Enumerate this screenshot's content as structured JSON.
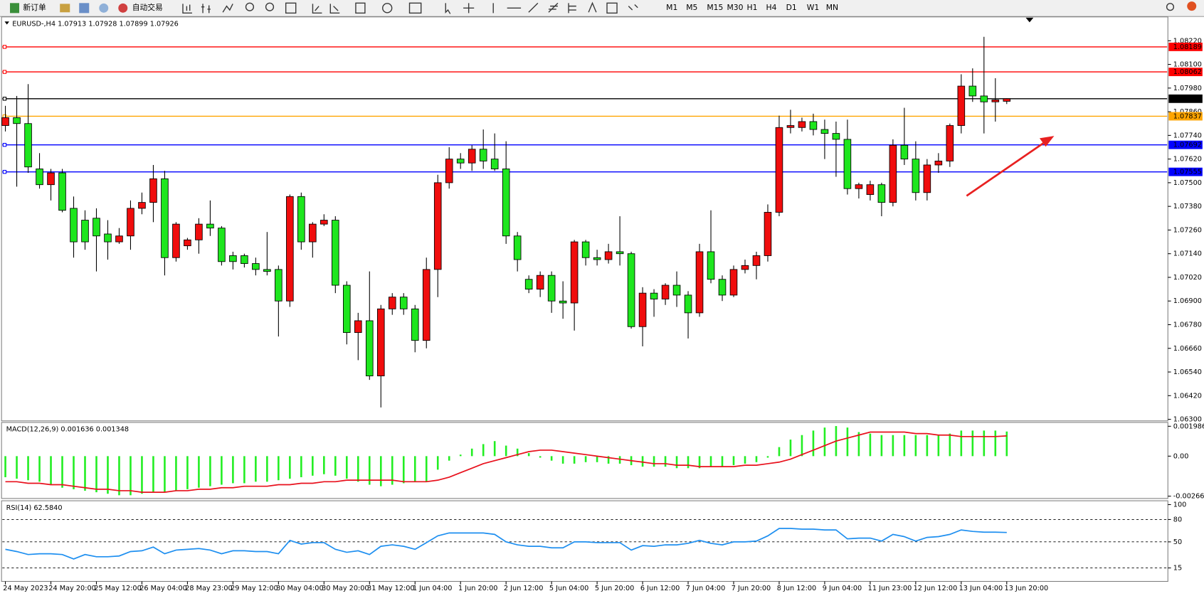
{
  "toolbar": {
    "new_order": "新订单",
    "auto_trading": "自动交易",
    "timeframes": [
      "M1",
      "M5",
      "M15",
      "M30",
      "H1",
      "H4",
      "D1",
      "W1",
      "MN"
    ]
  },
  "chart_data": [
    {
      "type": "candlestick",
      "title": "EURUSD-,H4  1.07913 1.07928 1.07899 1.07926",
      "up_color": "#f00d0d",
      "down_color": "#1ee61e",
      "categories": [
        "24 May 2023",
        null,
        null,
        null,
        "24 May 20:00",
        null,
        null,
        null,
        "25 May 12:00",
        null,
        null,
        null,
        "26 May 04:00",
        null,
        null,
        null,
        "28 May 23:00",
        null,
        null,
        null,
        "29 May 12:00",
        null,
        null,
        null,
        "30 May 04:00",
        null,
        null,
        null,
        "30 May 20:00",
        null,
        null,
        null,
        "31 May 12:00",
        null,
        null,
        null,
        "1 Jun 04:00",
        null,
        null,
        null,
        "1 Jun 20:00",
        null,
        null,
        null,
        "2 Jun 12:00",
        null,
        null,
        null,
        "5 Jun 04:00",
        null,
        null,
        null,
        "5 Jun 20:00",
        null,
        null,
        null,
        "6 Jun 12:00",
        null,
        null,
        null,
        "7 Jun 04:00",
        null,
        null,
        null,
        "7 Jun 20:00",
        null,
        null,
        null,
        "8 Jun 12:00",
        null,
        null,
        null,
        "9 Jun 04:00",
        null,
        null,
        null,
        "11 Jun 23:00",
        null,
        null,
        null,
        "12 Jun 12:00",
        null,
        null,
        null,
        "13 Jun 04:00",
        null,
        null,
        null,
        "13 Jun 20:00"
      ],
      "open": [
        1.0779,
        1.0783,
        1.078,
        1.0757,
        1.0749,
        1.0755,
        1.0737,
        1.0731,
        1.0732,
        1.0724,
        1.072,
        1.0723,
        1.0737,
        1.074,
        1.0752,
        1.0712,
        1.0718,
        1.0721,
        1.0729,
        1.0727,
        1.0713,
        1.0713,
        1.0709,
        1.0706,
        1.0706,
        1.069,
        1.0743,
        1.072,
        1.0729,
        1.0731,
        1.0698,
        1.0674,
        1.068,
        1.0652,
        1.0686,
        1.0692,
        1.0686,
        1.067,
        1.0706,
        1.075,
        1.0762,
        1.076,
        1.0767,
        1.0762,
        1.0757,
        1.0723,
        1.0701,
        1.0696,
        1.0703,
        1.069,
        1.0689,
        1.072,
        1.0712,
        1.0711,
        1.0715,
        1.0714,
        1.0677,
        1.0694,
        1.0691,
        1.0698,
        1.0693,
        1.0684,
        1.0715,
        1.0701,
        1.0693,
        1.0706,
        1.0708,
        1.0713,
        1.0735,
        1.0778,
        1.0778,
        1.0781,
        1.0777,
        1.0775,
        1.0772,
        1.0747,
        1.0744,
        1.0749,
        1.074,
        1.0769,
        1.0762,
        1.0745,
        1.0759,
        1.0761,
        1.0779,
        1.0799,
        1.0794,
        1.0791,
        1.07913
      ],
      "high": [
        1.0789,
        1.0794,
        1.08,
        1.0765,
        1.0757,
        1.0757,
        1.0743,
        1.0736,
        1.0737,
        1.0731,
        1.0727,
        1.0741,
        1.0745,
        1.0759,
        1.0756,
        1.073,
        1.0722,
        1.0732,
        1.0741,
        1.0728,
        1.0715,
        1.0714,
        1.0712,
        1.0725,
        1.0708,
        1.0744,
        1.0745,
        1.073,
        1.0734,
        1.0733,
        1.07,
        1.0684,
        1.0705,
        1.0688,
        1.0694,
        1.0694,
        1.0688,
        1.0712,
        1.0754,
        1.0768,
        1.0765,
        1.0769,
        1.0777,
        1.0775,
        1.0771,
        1.0725,
        1.0703,
        1.0705,
        1.0705,
        1.07,
        1.0721,
        1.0721,
        1.0716,
        1.0719,
        1.0733,
        1.0715,
        1.0697,
        1.0696,
        1.0699,
        1.0705,
        1.0695,
        1.0719,
        1.0736,
        1.0703,
        1.0708,
        1.0711,
        1.0715,
        1.0739,
        1.0784,
        1.0787,
        1.0783,
        1.0785,
        1.0782,
        1.0781,
        1.0782,
        1.075,
        1.0751,
        1.075,
        1.0772,
        1.0788,
        1.0771,
        1.0762,
        1.0765,
        1.078,
        1.0805,
        1.0808,
        1.0824,
        1.0803,
        1.07928
      ],
      "low": [
        1.0776,
        1.0748,
        1.0755,
        1.0747,
        1.0741,
        1.0735,
        1.0712,
        1.0716,
        1.0705,
        1.0711,
        1.0719,
        1.0716,
        1.0734,
        1.073,
        1.0703,
        1.071,
        1.0716,
        1.0714,
        1.0723,
        1.0708,
        1.0706,
        1.0707,
        1.0703,
        1.0703,
        1.0672,
        1.0687,
        1.0716,
        1.0712,
        1.0728,
        1.0694,
        1.0668,
        1.066,
        1.065,
        1.0636,
        1.0683,
        1.0683,
        1.0664,
        1.0666,
        1.0692,
        1.0747,
        1.0757,
        1.0756,
        1.0757,
        1.0756,
        1.0719,
        1.0705,
        1.0694,
        1.0692,
        1.0684,
        1.0681,
        1.0675,
        1.0708,
        1.0708,
        1.0709,
        1.0708,
        1.0676,
        1.0667,
        1.0682,
        1.0688,
        1.0687,
        1.0671,
        1.0682,
        1.0699,
        1.069,
        1.0692,
        1.0704,
        1.0701,
        1.071,
        1.0733,
        1.0775,
        1.0776,
        1.0774,
        1.0762,
        1.0753,
        1.0744,
        1.0742,
        1.0741,
        1.0733,
        1.0738,
        1.0759,
        1.0741,
        1.0741,
        1.0755,
        1.0758,
        1.0775,
        1.0791,
        1.0775,
        1.0781,
        1.07899
      ],
      "close": [
        1.0783,
        1.078,
        1.0758,
        1.0749,
        1.0755,
        1.0736,
        1.072,
        1.072,
        1.0723,
        1.072,
        1.0723,
        1.0737,
        1.074,
        1.0752,
        1.0712,
        1.0729,
        1.0721,
        1.0729,
        1.0727,
        1.071,
        1.071,
        1.0709,
        1.0706,
        1.0705,
        1.069,
        1.0743,
        1.072,
        1.0729,
        1.0731,
        1.0698,
        1.0674,
        1.068,
        1.0652,
        1.0686,
        1.0692,
        1.0686,
        1.067,
        1.0706,
        1.075,
        1.0762,
        1.076,
        1.0767,
        1.0761,
        1.0757,
        1.0723,
        1.0711,
        1.0696,
        1.0703,
        1.069,
        1.0689,
        1.072,
        1.0712,
        1.0711,
        1.0715,
        1.0714,
        1.0677,
        1.0694,
        1.0691,
        1.0698,
        1.0693,
        1.0684,
        1.0715,
        1.0701,
        1.0693,
        1.0706,
        1.0708,
        1.0713,
        1.0735,
        1.0778,
        1.0779,
        1.0781,
        1.0777,
        1.0775,
        1.0772,
        1.0747,
        1.0749,
        1.0749,
        1.074,
        1.0769,
        1.0762,
        1.0745,
        1.0759,
        1.0761,
        1.0779,
        1.0799,
        1.0794,
        1.0791,
        1.0792,
        1.07926
      ],
      "ylim": [
        1.06292,
        1.08341
      ],
      "yticks": [
        {
          "value": 1.0822,
          "label": "1.08220"
        },
        {
          "value": 1.081,
          "label": "1.08100"
        },
        {
          "value": 1.0798,
          "label": "1.07980"
        },
        {
          "value": 1.0786,
          "label": "1.07860"
        },
        {
          "value": 1.0774,
          "label": "1.07740"
        },
        {
          "value": 1.0762,
          "label": "1.07620"
        },
        {
          "value": 1.075,
          "label": "1.07500"
        },
        {
          "value": 1.0738,
          "label": "1.07380"
        },
        {
          "value": 1.0726,
          "label": "1.07260"
        },
        {
          "value": 1.0714,
          "label": "1.07140"
        },
        {
          "value": 1.0702,
          "label": "1.07020"
        },
        {
          "value": 1.069,
          "label": "1.06900"
        },
        {
          "value": 1.0678,
          "label": "1.06780"
        },
        {
          "value": 1.0666,
          "label": "1.06660"
        },
        {
          "value": 1.0654,
          "label": "1.06540"
        },
        {
          "value": 1.0642,
          "label": "1.06420"
        },
        {
          "value": 1.063,
          "label": "1.06300"
        }
      ],
      "levels": [
        {
          "value": 1.08189,
          "color": "#ff0000"
        },
        {
          "value": 1.08062,
          "color": "#ff0000"
        },
        {
          "value": 1.07926,
          "color": "#000000"
        },
        {
          "value": 1.07837,
          "color": "#ffa500"
        },
        {
          "value": 1.07692,
          "color": "#0000ff"
        },
        {
          "value": 1.07555,
          "color": "#0000ff"
        }
      ]
    },
    {
      "type": "macd",
      "title": "MACD(12,26,9) 0.001636 0.001348",
      "series": [
        {
          "color": "#22ee22",
          "values": [
            -0.0014,
            -0.0015,
            -0.0016,
            -0.0017,
            -0.0019,
            -0.0021,
            -0.0022,
            -0.0023,
            -0.0024,
            -0.0025,
            -0.0026,
            -0.0026,
            -0.0025,
            -0.0024,
            -0.0024,
            -0.0023,
            -0.0022,
            -0.0021,
            -0.002,
            -0.0019,
            -0.0018,
            -0.0018,
            -0.0017,
            -0.0017,
            -0.0016,
            -0.0015,
            -0.0014,
            -0.0013,
            -0.0012,
            -0.0013,
            -0.0015,
            -0.0017,
            -0.0019,
            -0.002,
            -0.0019,
            -0.0018,
            -0.0017,
            -0.0017,
            -0.0009,
            -0.0003,
            0.0001,
            0.0005,
            0.0008,
            0.001,
            0.0007,
            0.0005,
            0.0002,
            -0.0001,
            -0.0003,
            -0.0005,
            -0.0005,
            -0.0004,
            -0.0004,
            -0.0005,
            -0.0005,
            -0.0006,
            -0.0007,
            -0.0007,
            -0.0007,
            -0.0008,
            -0.0008,
            -0.0008,
            -0.0007,
            -0.0007,
            -0.0006,
            -0.0005,
            -0.0004,
            -0.0001,
            0.0006,
            0.0011,
            0.0014,
            0.0017,
            0.0019,
            0.002,
            0.0019,
            0.0016,
            0.0015,
            0.0014,
            0.0014,
            0.0014,
            0.0014,
            0.0014,
            0.0014,
            0.0015,
            0.0017,
            0.0017,
            0.0017,
            0.0017,
            0.001636
          ]
        },
        {
          "color": "#e8101c",
          "values": [
            -0.0017,
            -0.0017,
            -0.0018,
            -0.0018,
            -0.0019,
            -0.0019,
            -0.002,
            -0.0021,
            -0.0022,
            -0.0022,
            -0.0023,
            -0.0023,
            -0.0024,
            -0.0024,
            -0.0024,
            -0.0023,
            -0.0023,
            -0.0022,
            -0.0022,
            -0.0021,
            -0.0021,
            -0.002,
            -0.002,
            -0.002,
            -0.0019,
            -0.0019,
            -0.0018,
            -0.0018,
            -0.0017,
            -0.0017,
            -0.0016,
            -0.0016,
            -0.0016,
            -0.0016,
            -0.0016,
            -0.0017,
            -0.0017,
            -0.0017,
            -0.0016,
            -0.0014,
            -0.0011,
            -0.0008,
            -0.0005,
            -0.0003,
            -0.0001,
            0.0001,
            0.0003,
            0.0004,
            0.0004,
            0.0003,
            0.0002,
            0.0001,
            0,
            -0.0001,
            -0.0002,
            -0.0003,
            -0.0004,
            -0.0005,
            -0.0005,
            -0.0006,
            -0.0006,
            -0.0007,
            -0.0007,
            -0.0007,
            -0.0007,
            -0.0006,
            -0.0006,
            -0.0005,
            -0.0004,
            -0.0002,
            0.0001,
            0.0004,
            0.0007,
            0.001,
            0.0012,
            0.0014,
            0.0016,
            0.0016,
            0.0016,
            0.0016,
            0.0015,
            0.0015,
            0.0014,
            0.0014,
            0.0013,
            0.0013,
            0.0013,
            0.0013,
            0.001348
          ]
        }
      ],
      "ylim": [
        -0.00266,
        0.001986
      ],
      "yticks": [
        0.001986,
        {
          "value": 0,
          "label": "0.00"
        },
        -0.00266
      ]
    },
    {
      "type": "line",
      "title": "RSI(14) 62.5840",
      "grid": "dashed",
      "series": [
        {
          "color": "#1e8ff0",
          "values": [
            40,
            37,
            33,
            34,
            34,
            33,
            27,
            33,
            30,
            30,
            31,
            37,
            38,
            43,
            34,
            39,
            40,
            41,
            39,
            34,
            38,
            38,
            37,
            37,
            34,
            52,
            47,
            49,
            49,
            40,
            36,
            38,
            33,
            44,
            46,
            44,
            40,
            49,
            58,
            62,
            62,
            62,
            62,
            60,
            50,
            46,
            44,
            44,
            42,
            42,
            50,
            50,
            49,
            49,
            49,
            39,
            45,
            44,
            46,
            46,
            48,
            52,
            48,
            46,
            50,
            50,
            51,
            58,
            68,
            68,
            67,
            67,
            66,
            66,
            54,
            55,
            55,
            51,
            60,
            57,
            51,
            56,
            57,
            60,
            66,
            64,
            63,
            63,
            62.584
          ]
        }
      ],
      "ylim": [
        0,
        100
      ],
      "yticks": [
        100,
        80,
        50,
        15
      ]
    }
  ]
}
